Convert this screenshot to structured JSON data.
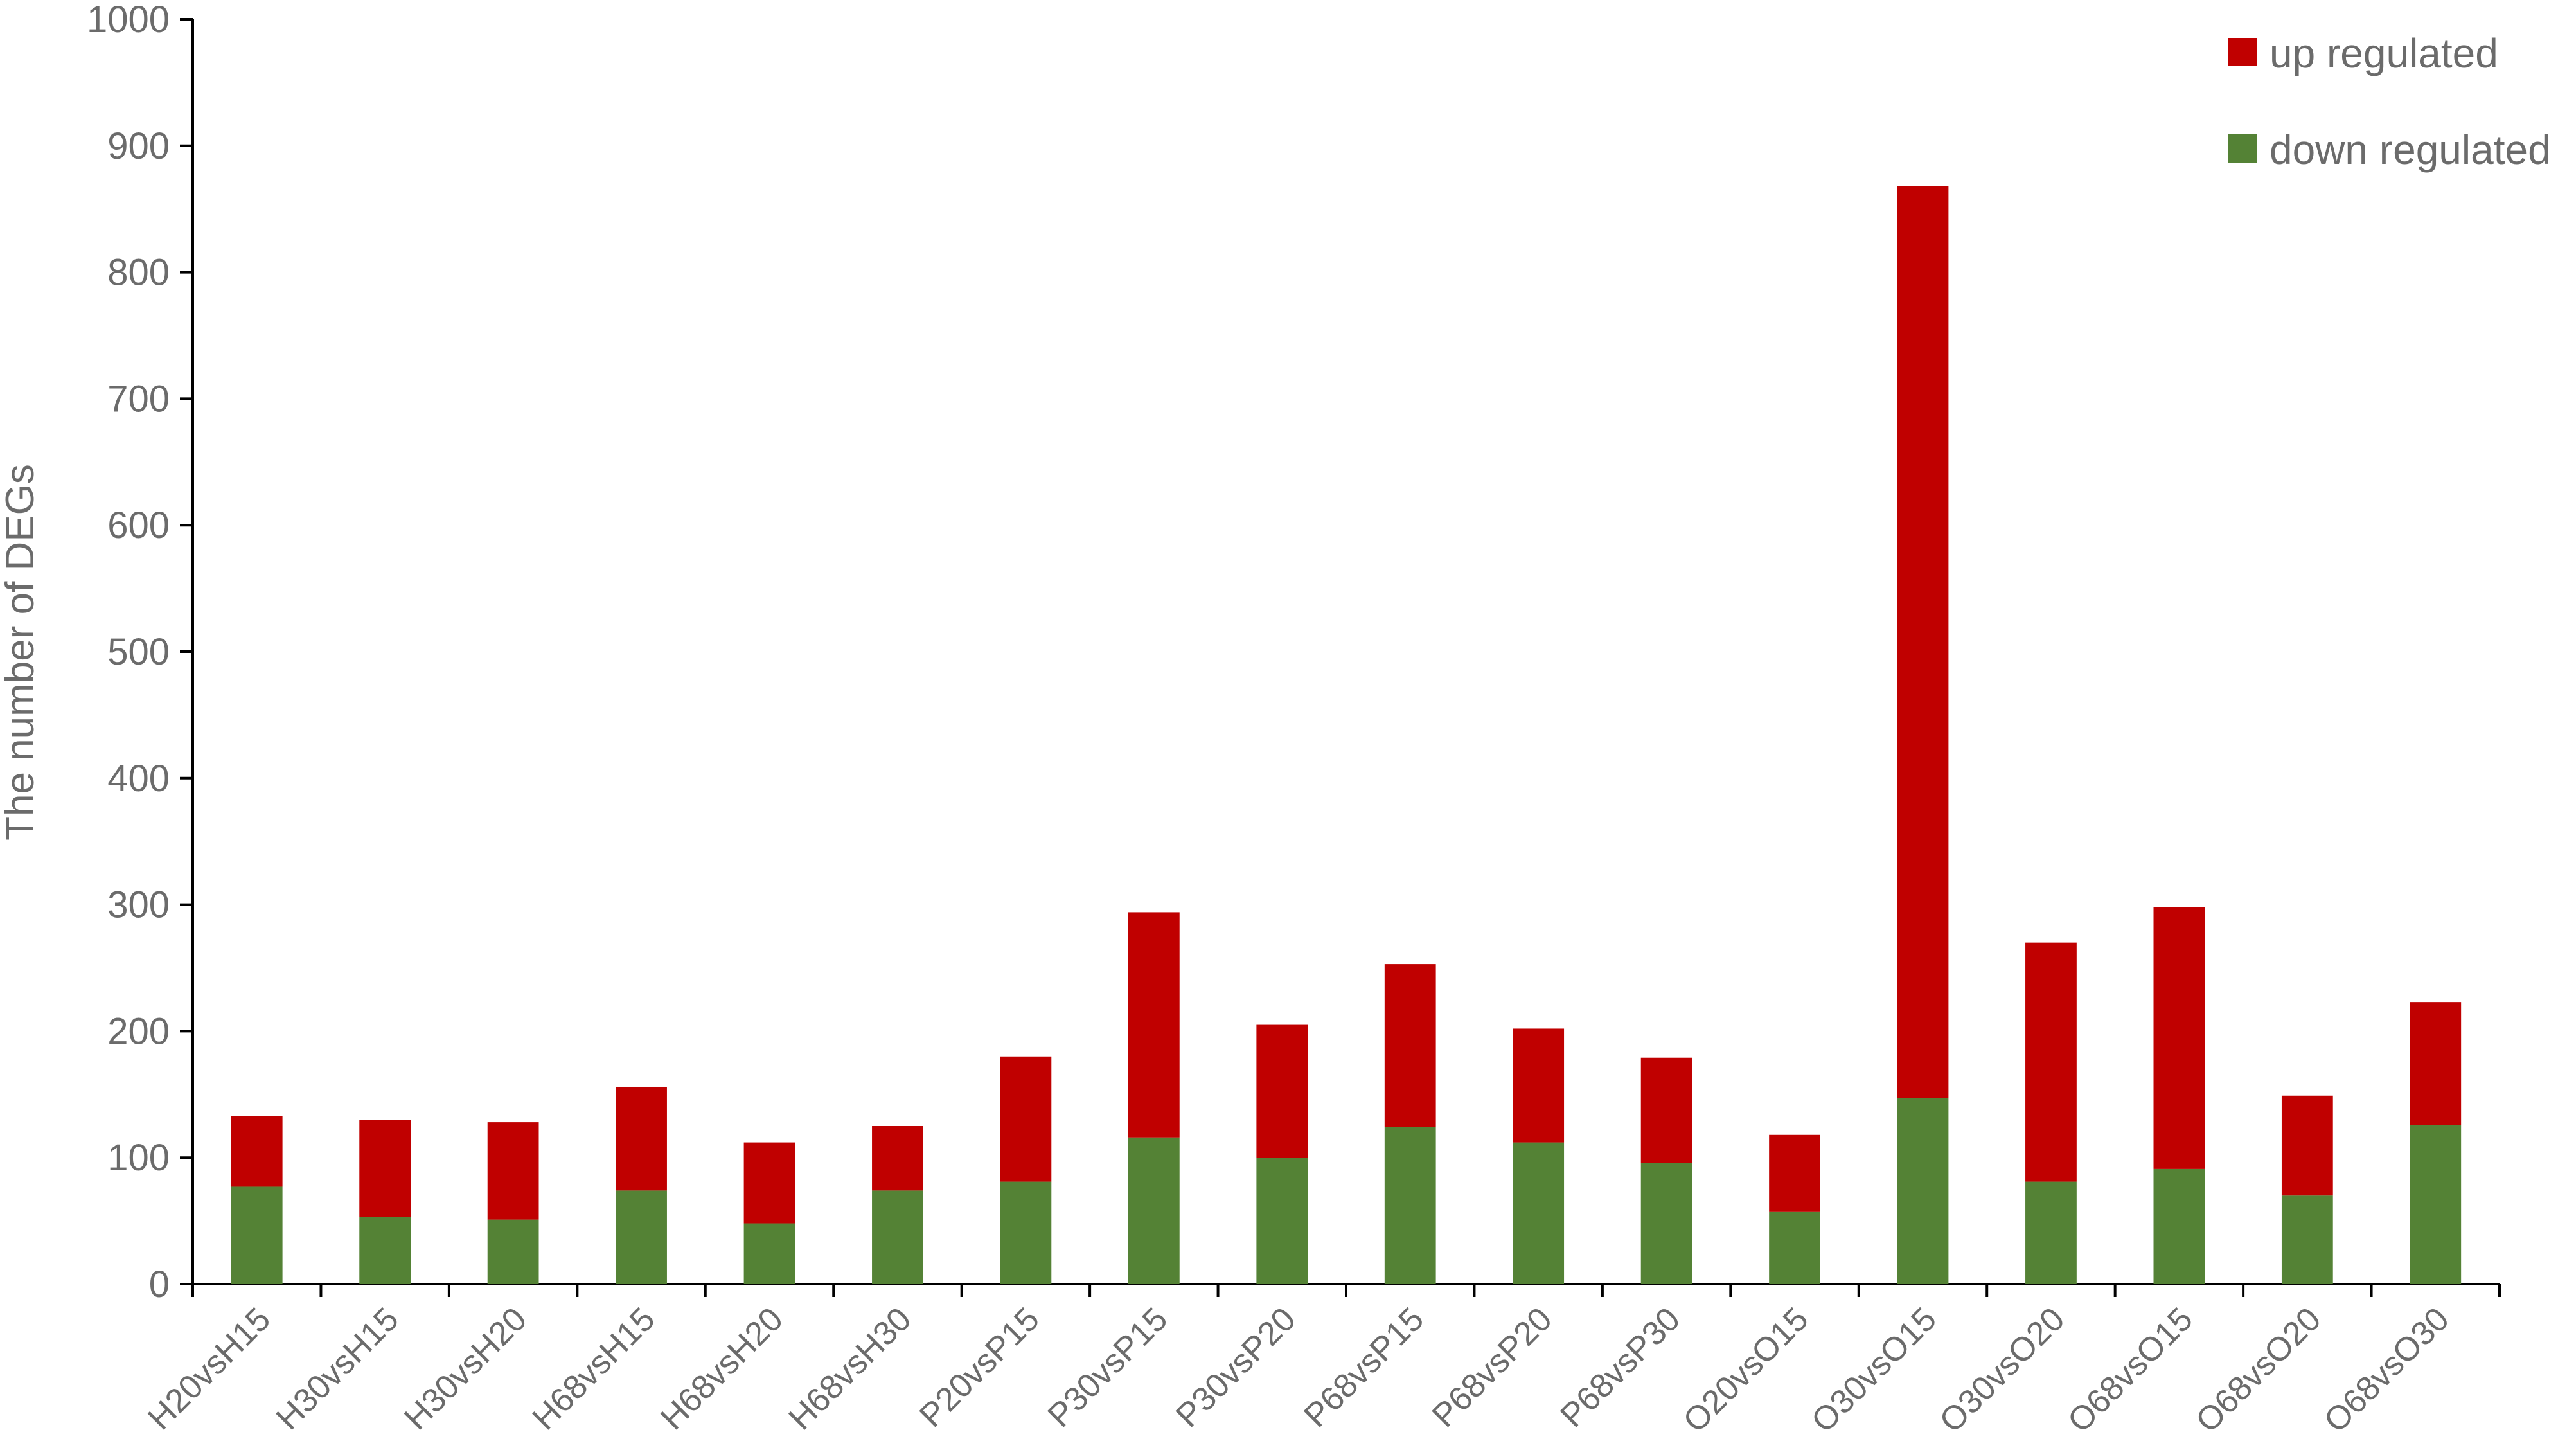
{
  "chart_data": {
    "type": "bar",
    "stacked": true,
    "title": "",
    "xlabel": "",
    "ylabel": "The number of DEGs",
    "ylim": [
      0,
      1000
    ],
    "yticks": [
      0,
      100,
      200,
      300,
      400,
      500,
      600,
      700,
      800,
      900,
      1000
    ],
    "grid": false,
    "legend_position": "top-right",
    "categories": [
      "H20vsH15",
      "H30vsH15",
      "H30vsH20",
      "H68vsH15",
      "H68vsH20",
      "H68vsH30",
      "P20vsP15",
      "P30vsP15",
      "P30vsP20",
      "P68vsP15",
      "P68vsP20",
      "P68vsP30",
      "O20vsO15",
      "O30vsO15",
      "O30vsO20",
      "O68vsO15",
      "O68vsO20",
      "O68vsO30"
    ],
    "series": [
      {
        "name": "down regulated",
        "color": "#548235",
        "values": [
          77,
          53,
          51,
          74,
          48,
          74,
          81,
          116,
          100,
          124,
          112,
          96,
          57,
          147,
          81,
          91,
          70,
          126
        ]
      },
      {
        "name": "up regulated",
        "color": "#c00000",
        "values": [
          56,
          77,
          77,
          82,
          64,
          51,
          99,
          178,
          105,
          129,
          90,
          83,
          61,
          721,
          189,
          207,
          79,
          97
        ]
      }
    ],
    "legend": [
      "up regulated",
      "down regulated"
    ]
  }
}
